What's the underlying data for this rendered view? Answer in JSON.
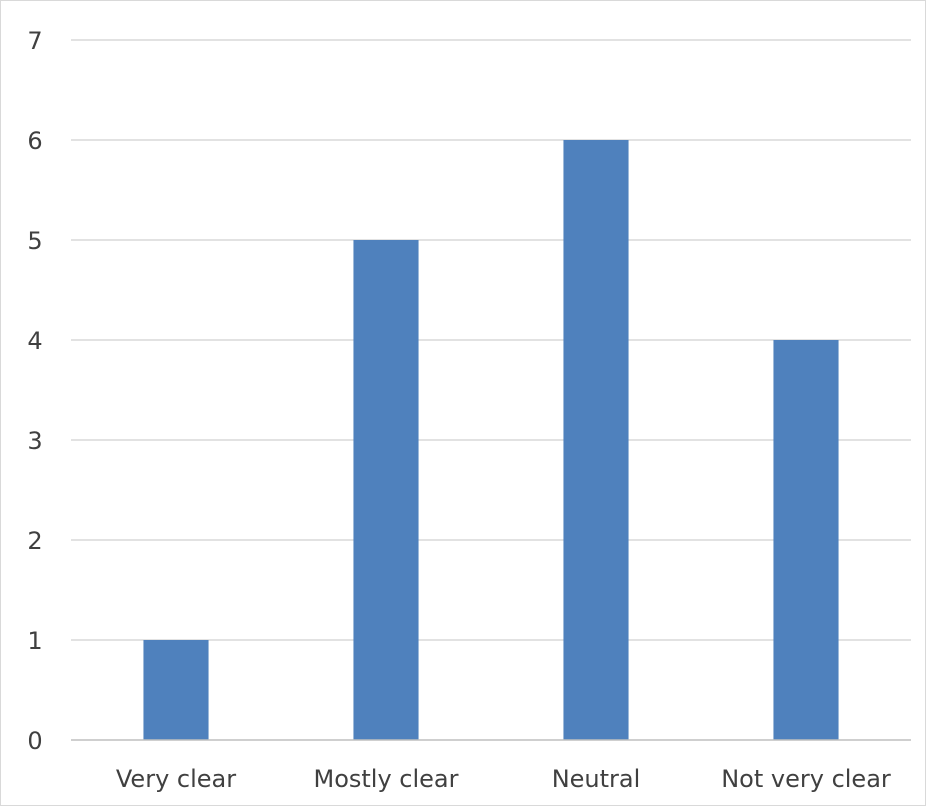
{
  "chart_data": {
    "type": "bar",
    "categories": [
      "Very clear",
      "Mostly clear",
      "Neutral",
      "Not very clear"
    ],
    "values": [
      1,
      5,
      6,
      4
    ],
    "title": "",
    "xlabel": "",
    "ylabel": "",
    "ylim": [
      0,
      7
    ],
    "yticks": [
      "0",
      "1",
      "2",
      "3",
      "4",
      "5",
      "6",
      "7"
    ],
    "grid": true,
    "legend": "none",
    "bar_color": "#4f81bd",
    "grid_color": "#d9d9d9",
    "axis_color": "#bfbfbf"
  }
}
